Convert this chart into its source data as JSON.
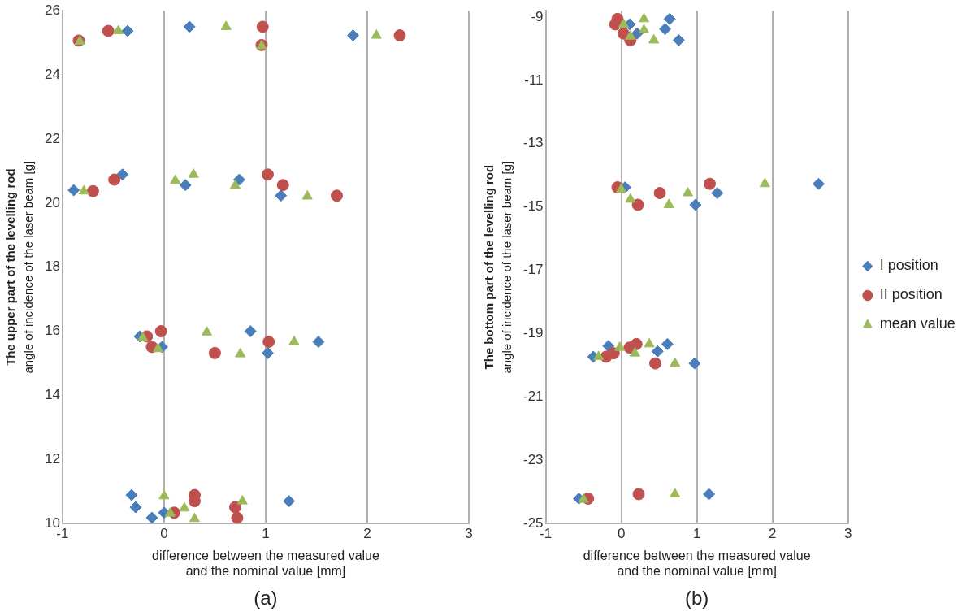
{
  "chart_data": [
    {
      "type": "scatter",
      "xlabel": "difference between the measured value\nand the nominal value [mm]",
      "ylabel": "The upper part of the levelling rod\nangle of incidence of the laser beam [g]",
      "annotations": [
        "(a)"
      ],
      "xlim": [
        -1,
        3
      ],
      "ylim": [
        10,
        26
      ],
      "xticks": [
        -1,
        0,
        1,
        2,
        3
      ],
      "yticks": [
        10,
        12,
        14,
        16,
        18,
        20,
        22,
        24,
        26
      ],
      "grid": "x",
      "legend": false,
      "series": [
        {
          "color": "#4a7ebb",
          "marker": "diamond",
          "x": [
            -0.36,
            0.25,
            1.86,
            -0.89,
            -0.41,
            0.21,
            0.74,
            1.15,
            -0.24,
            -0.02,
            0.85,
            1.02,
            1.52,
            -0.32,
            -0.28,
            -0.12,
            0.0,
            1.23
          ],
          "values": [
            25.37,
            25.5,
            25.23,
            20.4,
            20.89,
            20.56,
            20.73,
            20.23,
            15.84,
            15.51,
            16.0,
            15.32,
            15.67,
            10.89,
            10.51,
            10.18,
            10.34,
            10.7
          ]
        },
        {
          "color": "#c0504d",
          "marker": "circle",
          "x": [
            -0.84,
            -0.55,
            0.97,
            0.96,
            2.32,
            -0.7,
            -0.49,
            1.02,
            1.17,
            1.7,
            -0.17,
            -0.03,
            -0.12,
            0.5,
            1.03,
            0.1,
            0.3,
            0.3,
            0.7,
            0.72
          ],
          "values": [
            25.07,
            25.37,
            25.5,
            24.93,
            25.23,
            20.37,
            20.73,
            20.89,
            20.56,
            20.23,
            15.84,
            16.0,
            15.51,
            15.32,
            15.67,
            10.34,
            10.89,
            10.7,
            10.51,
            10.18
          ]
        },
        {
          "color": "#9bbb59",
          "marker": "triangle",
          "x": [
            -0.83,
            -0.45,
            0.61,
            0.96,
            2.09,
            -0.79,
            0.11,
            0.29,
            0.7,
            1.41,
            -0.21,
            -0.06,
            0.42,
            0.75,
            1.28,
            0.0,
            0.06,
            0.2,
            0.3,
            0.77
          ],
          "values": [
            25.04,
            25.37,
            25.5,
            24.9,
            25.23,
            20.37,
            20.7,
            20.89,
            20.54,
            20.21,
            15.8,
            15.45,
            15.97,
            15.29,
            15.67,
            10.86,
            10.32,
            10.48,
            10.15,
            10.7
          ]
        }
      ]
    },
    {
      "type": "scatter",
      "xlabel": "difference between the measured value\nand the nominal value [mm]",
      "ylabel": "The bottom part of the levelling rod\nangle of incidence of the laser beam [g]",
      "annotations": [
        "(b)"
      ],
      "xlim": [
        -1,
        3
      ],
      "ylim": [
        -25,
        -8.8
      ],
      "xticks": [
        -1,
        0,
        1,
        2,
        3
      ],
      "yticks": [
        -25,
        -23,
        -21,
        -19,
        -17,
        -15,
        -13,
        -11,
        -9
      ],
      "grid": "x",
      "legend": "right",
      "series": [
        {
          "name": "I position",
          "color": "#4a7ebb",
          "marker": "diamond",
          "x": [
            0.11,
            0.21,
            0.64,
            0.58,
            0.76,
            0.05,
            1.27,
            2.61,
            0.98,
            -0.37,
            -0.17,
            0.48,
            0.61,
            0.97,
            -0.56,
            1.16
          ],
          "values": [
            -9.23,
            -9.52,
            -9.06,
            -9.38,
            -9.73,
            -14.38,
            -14.56,
            -14.27,
            -14.93,
            -19.73,
            -19.39,
            -19.56,
            -19.33,
            -19.94,
            -24.21,
            -24.07
          ]
        },
        {
          "name": "II position",
          "color": "#c0504d",
          "marker": "circle",
          "x": [
            -0.05,
            -0.08,
            0.03,
            0.12,
            -0.05,
            0.22,
            0.51,
            1.17,
            -0.2,
            -0.1,
            0.11,
            0.2,
            0.45,
            -0.44,
            0.23
          ],
          "values": [
            -9.06,
            -9.23,
            -9.52,
            -9.73,
            -14.38,
            -14.93,
            -14.56,
            -14.27,
            -19.73,
            -19.62,
            -19.44,
            -19.33,
            -19.94,
            -24.21,
            -24.07
          ]
        },
        {
          "name": "mean value",
          "color": "#9bbb59",
          "marker": "triangle",
          "x": [
            0.03,
            0.12,
            0.3,
            0.3,
            0.43,
            0.0,
            0.12,
            0.63,
            0.88,
            1.9,
            -0.3,
            -0.02,
            0.18,
            0.37,
            0.71,
            -0.5,
            0.71
          ],
          "values": [
            -9.23,
            -9.61,
            -9.06,
            -9.41,
            -9.73,
            -14.44,
            -14.76,
            -14.93,
            -14.56,
            -14.27,
            -19.73,
            -19.44,
            -19.62,
            -19.33,
            -19.94,
            -24.24,
            -24.07
          ]
        }
      ]
    }
  ]
}
